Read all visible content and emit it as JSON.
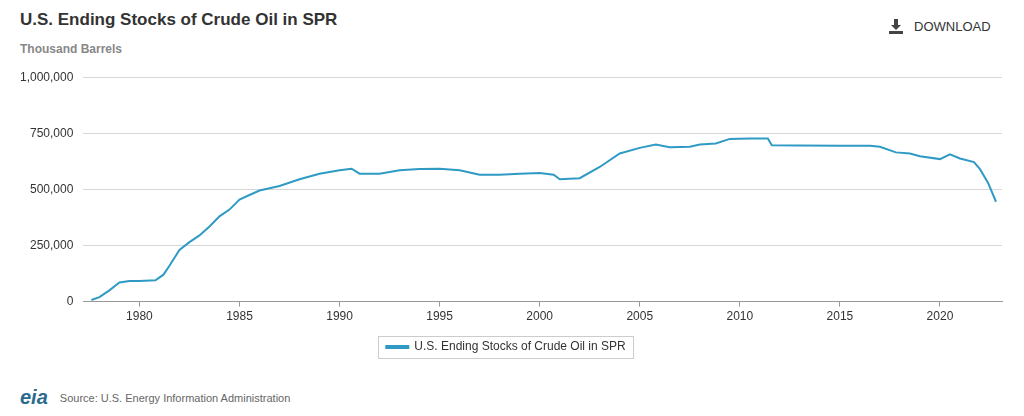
{
  "header": {
    "download": "DOWNLOAD"
  },
  "chart_data": {
    "type": "line",
    "title": "U.S. Ending Stocks of Crude Oil in SPR",
    "subtitle": "Thousand Barrels",
    "x": [
      1977.6,
      1978.0,
      1978.5,
      1979.0,
      1979.5,
      1980.0,
      1980.8,
      1981.2,
      1981.5,
      1982.0,
      1982.5,
      1983.0,
      1983.5,
      1984.0,
      1984.5,
      1985.0,
      1985.5,
      1986.0,
      1987.0,
      1988.0,
      1989.0,
      1990.0,
      1990.6,
      1991.0,
      1992.0,
      1993.0,
      1994.0,
      1995.0,
      1996.0,
      1997.0,
      1998.0,
      1999.0,
      2000.0,
      2000.7,
      2001.0,
      2002.0,
      2003.0,
      2004.0,
      2005.0,
      2005.8,
      2006.5,
      2007.5,
      2008.0,
      2008.8,
      2009.5,
      2010.5,
      2011.4,
      2011.6,
      2013.0,
      2015.0,
      2016.5,
      2017.0,
      2017.8,
      2018.5,
      2019.0,
      2020.0,
      2020.5,
      2021.0,
      2021.7,
      2022.0,
      2022.4,
      2022.8
    ],
    "series": [
      {
        "name": "U.S. Ending Stocks of Crude Oil in SPR",
        "color": "#2f9bc5",
        "values": [
          7000,
          20000,
          50000,
          85000,
          92000,
          92000,
          95000,
          120000,
          160000,
          230000,
          265000,
          295000,
          335000,
          380000,
          410000,
          455000,
          475000,
          495000,
          515000,
          545000,
          570000,
          585000,
          592000,
          570000,
          570000,
          585000,
          591000,
          592000,
          585000,
          565000,
          565000,
          570000,
          573000,
          565000,
          545000,
          550000,
          600000,
          660000,
          685000,
          700000,
          688000,
          690000,
          700000,
          705000,
          725000,
          727000,
          727000,
          697000,
          696000,
          694000,
          695000,
          690000,
          665000,
          660000,
          648000,
          635000,
          656000,
          638000,
          622000,
          590000,
          530000,
          445000
        ]
      }
    ],
    "xlim": [
      1977.2,
      2023.1
    ],
    "xticks": [
      1980,
      1985,
      1990,
      1995,
      2000,
      2005,
      2010,
      2015,
      2020
    ],
    "ylim": [
      0,
      1000000
    ],
    "yticks": [
      {
        "value": 0,
        "label": "0"
      },
      {
        "value": 250000,
        "label": "250,000"
      },
      {
        "value": 500000,
        "label": "500,000"
      },
      {
        "value": 750000,
        "label": "750,000"
      },
      {
        "value": 1000000,
        "label": "1,000,000"
      }
    ],
    "grid": true,
    "legend": "bottom"
  },
  "footer": {
    "logo": "eia",
    "source": "Source: U.S. Energy Information Administration"
  }
}
